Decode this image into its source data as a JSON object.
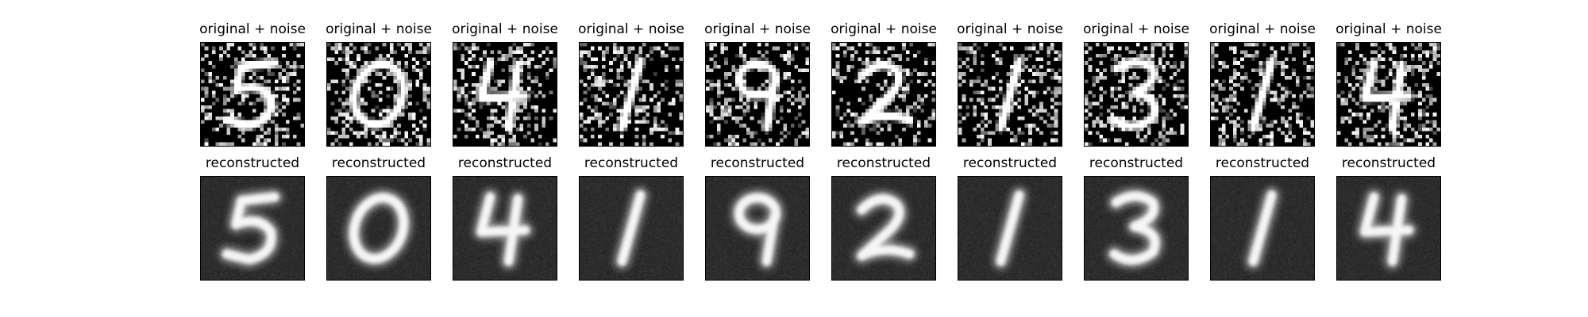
{
  "figure": {
    "rows": [
      {
        "kind": "noisy",
        "title": "original + noise",
        "panels": [
          {
            "digit": "5"
          },
          {
            "digit": "0"
          },
          {
            "digit": "4"
          },
          {
            "digit": "1"
          },
          {
            "digit": "9"
          },
          {
            "digit": "2"
          },
          {
            "digit": "1"
          },
          {
            "digit": "3"
          },
          {
            "digit": "1"
          },
          {
            "digit": "4"
          }
        ]
      },
      {
        "kind": "reconstructed",
        "title": "reconstructed",
        "panels": [
          {
            "digit": "5"
          },
          {
            "digit": "0"
          },
          {
            "digit": "4"
          },
          {
            "digit": "1"
          },
          {
            "digit": "9"
          },
          {
            "digit": "2"
          },
          {
            "digit": "1"
          },
          {
            "digit": "3"
          },
          {
            "digit": "1"
          },
          {
            "digit": "4"
          }
        ]
      }
    ],
    "colors": {
      "background": "#ffffff",
      "text": "#000000",
      "image_dark": "#000000",
      "image_light": "#ffffff",
      "reconstruction_background": "#2a2a2a"
    }
  }
}
